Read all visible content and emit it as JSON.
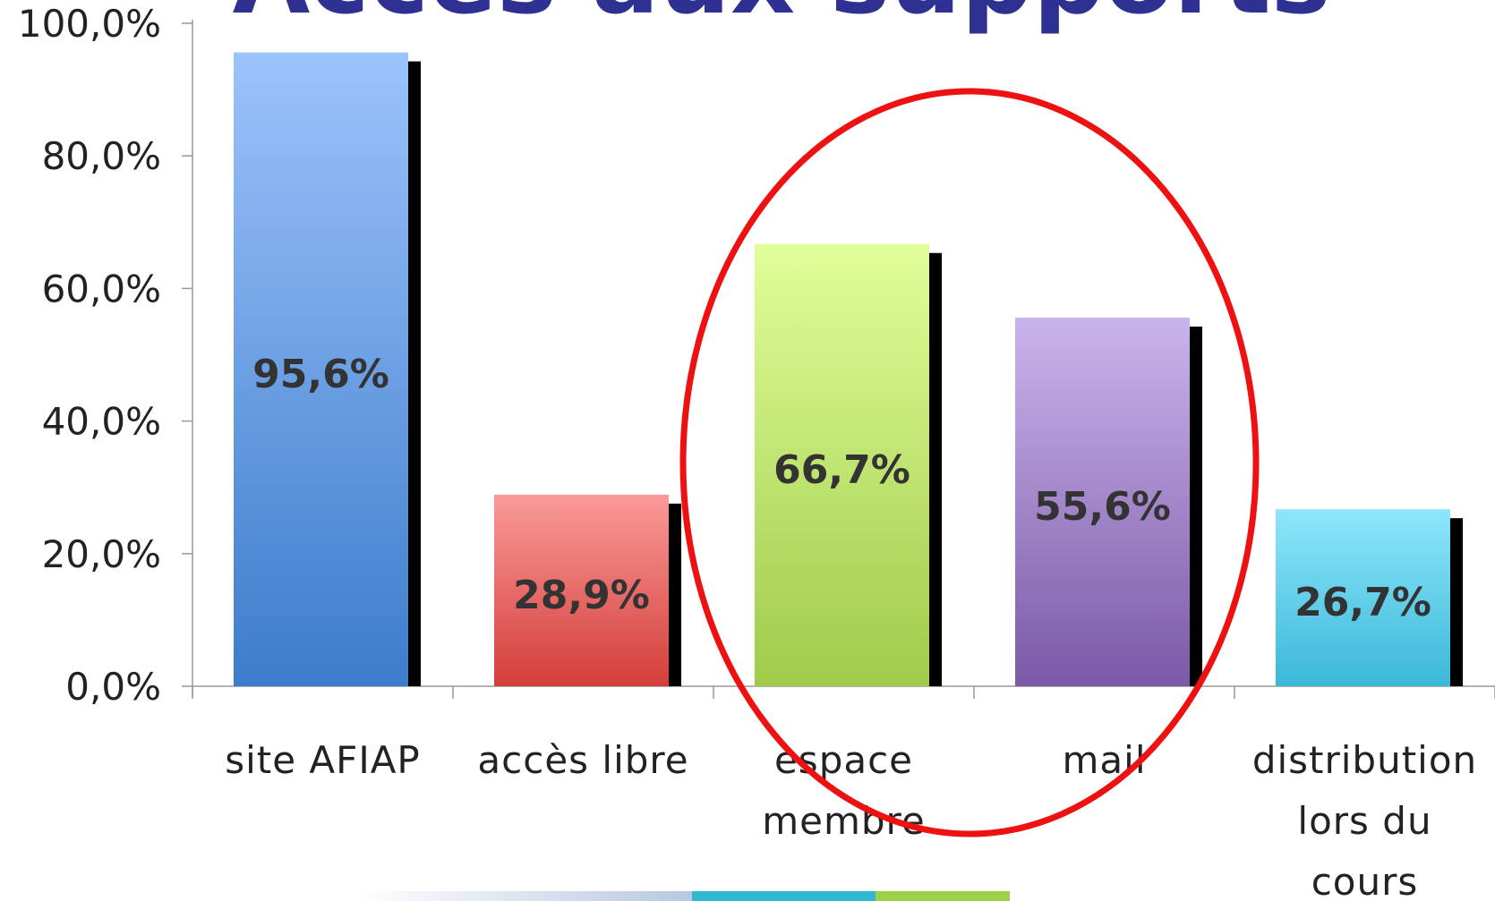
{
  "chart_data": {
    "type": "bar",
    "title": "Accès aux supports",
    "categories": [
      "site AFIAP",
      "accès libre",
      "espace membre",
      "mail",
      "distribution lors du cours"
    ],
    "values": [
      95.6,
      28.9,
      66.7,
      55.6,
      26.7
    ],
    "value_labels": [
      "95,6%",
      "28,9%",
      "66,7%",
      "55,6%",
      "26,7%"
    ],
    "colors": [
      [
        "#9cc3fb",
        "#3d7ccb"
      ],
      [
        "#fa9a98",
        "#d43e3a"
      ],
      [
        "#e1fe9a",
        "#9fcb4a"
      ],
      [
        "#cab4ec",
        "#7c59a6"
      ],
      [
        "#8ee6fb",
        "#3bb8d8"
      ]
    ],
    "ylim": [
      0,
      100
    ],
    "yticks": [
      {
        "value": 0,
        "label": "0,0%"
      },
      {
        "value": 20,
        "label": "20,0%"
      },
      {
        "value": 40,
        "label": "40,0%"
      },
      {
        "value": 60,
        "label": "60,0%"
      },
      {
        "value": 80,
        "label": "80,0%"
      },
      {
        "value": 100,
        "label": "100,0%"
      }
    ]
  }
}
